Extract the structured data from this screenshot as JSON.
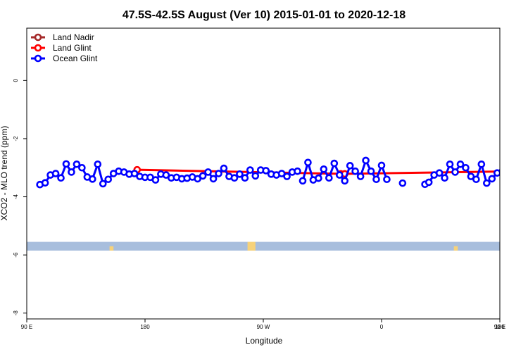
{
  "chart_data": {
    "type": "line",
    "title": "47.5S-42.5S August (Ver 10)   2015-01-01 to 2020-12-18",
    "xlabel": "Longitude",
    "ylabel": "XCO2 - MLO trend (ppm)",
    "xlim": [
      90,
      450
    ],
    "ylim": [
      -8.2,
      1.8
    ],
    "x_ticks": [
      {
        "value": 90,
        "label": "90 E"
      },
      {
        "value": 180,
        "label": "180"
      },
      {
        "value": 270,
        "label": "90 W"
      },
      {
        "value": 360,
        "label": "0"
      },
      {
        "value": 450,
        "label": "90 E"
      },
      {
        "value": 540,
        "label": "180"
      }
    ],
    "y_ticks": [
      {
        "value": 0,
        "label": "0"
      },
      {
        "value": -2,
        "label": "-2"
      },
      {
        "value": -4,
        "label": "-4"
      },
      {
        "value": -6,
        "label": "-6"
      },
      {
        "value": -8,
        "label": "-8"
      }
    ],
    "legend_position": "top-left",
    "map_strip": {
      "y_range": [
        -5.85,
        -5.55
      ],
      "ocean_color": "#a8bedd",
      "land_color": "#f7d27a",
      "land_segments": [
        {
          "x1": 153,
          "x2": 156,
          "y1": -5.85,
          "y2": -5.7
        },
        {
          "x1": 258,
          "x2": 264,
          "y1": -5.85,
          "y2": -5.55
        },
        {
          "x1": 415,
          "x2": 418,
          "y1": -5.85,
          "y2": -5.7
        },
        {
          "x1": 533,
          "x2": 535,
          "y1": -5.85,
          "y2": -5.55
        }
      ]
    },
    "series": [
      {
        "name": "Land Nadir",
        "color": "#a52a2a",
        "points": []
      },
      {
        "name": "Land Glint",
        "color": "#ff0000",
        "points": [
          {
            "x": 174,
            "y": -3.07
          },
          {
            "x": 329,
            "y": -3.21
          },
          {
            "x": 332,
            "y": -3.21
          },
          {
            "x": 524,
            "y": -3.08
          }
        ]
      },
      {
        "name": "Ocean Glint",
        "color": "#0000ff",
        "segments": [
          [
            {
              "x": 100,
              "y": -3.58
            },
            {
              "x": 104,
              "y": -3.52
            },
            {
              "x": 108,
              "y": -3.25
            },
            {
              "x": 112,
              "y": -3.2
            },
            {
              "x": 116,
              "y": -3.35
            },
            {
              "x": 120,
              "y": -2.87
            },
            {
              "x": 124,
              "y": -3.15
            },
            {
              "x": 128,
              "y": -2.88
            },
            {
              "x": 132,
              "y": -3.0
            },
            {
              "x": 136,
              "y": -3.32
            },
            {
              "x": 140,
              "y": -3.39
            },
            {
              "x": 144,
              "y": -2.88
            },
            {
              "x": 148,
              "y": -3.55
            },
            {
              "x": 152,
              "y": -3.4
            },
            {
              "x": 156,
              "y": -3.2
            },
            {
              "x": 160,
              "y": -3.12
            },
            {
              "x": 164,
              "y": -3.15
            },
            {
              "x": 168,
              "y": -3.22
            },
            {
              "x": 172,
              "y": -3.2
            },
            {
              "x": 176,
              "y": -3.3
            },
            {
              "x": 180,
              "y": -3.33
            },
            {
              "x": 184,
              "y": -3.33
            },
            {
              "x": 188,
              "y": -3.42
            },
            {
              "x": 192,
              "y": -3.22
            },
            {
              "x": 196,
              "y": -3.25
            },
            {
              "x": 200,
              "y": -3.35
            },
            {
              "x": 204,
              "y": -3.33
            },
            {
              "x": 208,
              "y": -3.38
            },
            {
              "x": 212,
              "y": -3.36
            },
            {
              "x": 216,
              "y": -3.32
            },
            {
              "x": 220,
              "y": -3.38
            },
            {
              "x": 224,
              "y": -3.28
            },
            {
              "x": 228,
              "y": -3.15
            },
            {
              "x": 232,
              "y": -3.38
            },
            {
              "x": 236,
              "y": -3.2
            },
            {
              "x": 240,
              "y": -3.02
            },
            {
              "x": 244,
              "y": -3.3
            },
            {
              "x": 248,
              "y": -3.35
            },
            {
              "x": 252,
              "y": -3.22
            },
            {
              "x": 256,
              "y": -3.35
            },
            {
              "x": 260,
              "y": -3.08
            },
            {
              "x": 264,
              "y": -3.28
            },
            {
              "x": 268,
              "y": -3.08
            },
            {
              "x": 272,
              "y": -3.1
            },
            {
              "x": 276,
              "y": -3.22
            },
            {
              "x": 280,
              "y": -3.25
            },
            {
              "x": 284,
              "y": -3.2
            },
            {
              "x": 288,
              "y": -3.3
            },
            {
              "x": 292,
              "y": -3.15
            },
            {
              "x": 296,
              "y": -3.12
            }
          ],
          [
            {
              "x": 300,
              "y": -3.45
            },
            {
              "x": 304,
              "y": -2.82
            },
            {
              "x": 308,
              "y": -3.42
            },
            {
              "x": 312,
              "y": -3.36
            },
            {
              "x": 316,
              "y": -3.05
            },
            {
              "x": 320,
              "y": -3.35
            },
            {
              "x": 324,
              "y": -2.85
            },
            {
              "x": 328,
              "y": -3.25
            },
            {
              "x": 332,
              "y": -3.45
            },
            {
              "x": 336,
              "y": -2.93
            },
            {
              "x": 340,
              "y": -3.12
            },
            {
              "x": 344,
              "y": -3.3
            },
            {
              "x": 348,
              "y": -2.75
            },
            {
              "x": 352,
              "y": -3.12
            },
            {
              "x": 356,
              "y": -3.4
            },
            {
              "x": 360,
              "y": -2.92
            },
            {
              "x": 364,
              "y": -3.4
            }
          ],
          [
            {
              "x": 376,
              "y": -3.53
            }
          ],
          [
            {
              "x": 393,
              "y": -3.57
            },
            {
              "x": 396,
              "y": -3.5
            },
            {
              "x": 400,
              "y": -3.25
            },
            {
              "x": 404,
              "y": -3.18
            },
            {
              "x": 408,
              "y": -3.35
            },
            {
              "x": 412,
              "y": -2.88
            },
            {
              "x": 416,
              "y": -3.15
            },
            {
              "x": 420,
              "y": -2.88
            },
            {
              "x": 424,
              "y": -3.0
            },
            {
              "x": 428,
              "y": -3.3
            },
            {
              "x": 432,
              "y": -3.4
            },
            {
              "x": 436,
              "y": -2.88
            },
            {
              "x": 440,
              "y": -3.53
            },
            {
              "x": 444,
              "y": -3.38
            },
            {
              "x": 448,
              "y": -3.18
            },
            {
              "x": 452,
              "y": -3.12
            },
            {
              "x": 456,
              "y": -3.15
            }
          ]
        ]
      }
    ]
  }
}
